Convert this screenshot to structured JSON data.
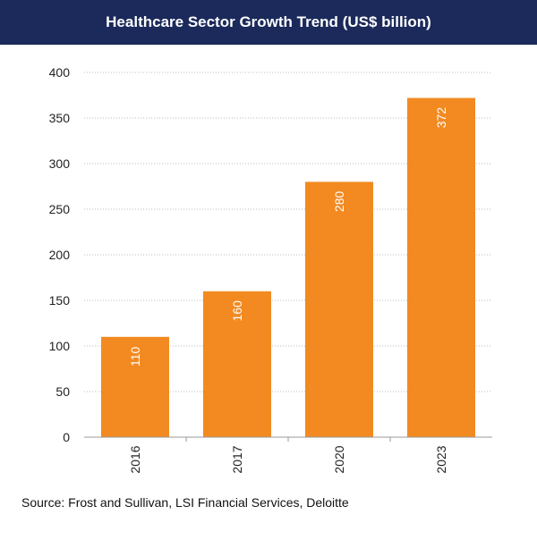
{
  "chart_data": {
    "type": "bar",
    "title": "Healthcare Sector Growth Trend (US$ billion)",
    "categories": [
      "2016",
      "2017",
      "2020",
      "2023"
    ],
    "values": [
      110,
      160,
      280,
      372
    ],
    "data_labels": [
      "110",
      "160",
      "280",
      "372"
    ],
    "ylim": [
      0,
      400
    ],
    "yticks": [
      0,
      50,
      100,
      150,
      200,
      250,
      300,
      350,
      400
    ],
    "grid": true,
    "bar_color": "#f28a21",
    "label_color": "#ffffff",
    "source": "Source: Frost and Sullivan, LSI Financial Services, Deloitte"
  }
}
